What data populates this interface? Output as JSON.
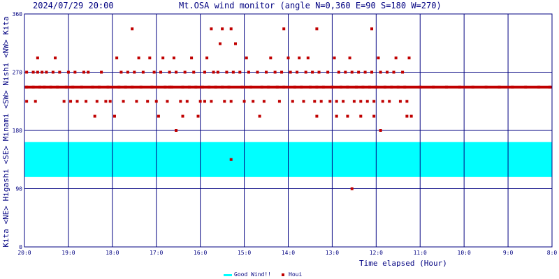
{
  "header": {
    "date": "2024/07/29 20:00",
    "title": "Mt.OSA wind monitor (angle N=0,360 E=90 S=180 W=270)"
  },
  "chart_data": {
    "type": "scatter",
    "title": "Mt.OSA wind monitor (angle N=0,360 E=90 S=180 W=270)",
    "ylabel": "Kita <NE> Higashi <SE> Minami <SW> Nishi <NW> Kita",
    "xlabel": "Time elapsed (Hour)",
    "xlim": [
      20,
      8
    ],
    "ylim": [
      0,
      360
    ],
    "x_tick_labels": [
      "20:0",
      "19:0",
      "18:0",
      "17:0",
      "16:0",
      "15:0",
      "14:0",
      "13:0",
      "12:0",
      "11:0",
      "10:0",
      "9:0",
      "8:0"
    ],
    "y_tick_labels": [
      "0",
      "90",
      "180",
      "270",
      "360"
    ],
    "y_ticks": [
      0,
      90,
      180,
      270,
      360
    ],
    "grid": true,
    "legend_position": "bottom-center",
    "colors": {
      "good_wind": "#00ffff",
      "houi": "#c00000",
      "axis": "#000080",
      "grid": "#000080"
    },
    "good_wind_band": {
      "label": "Good Wind!!",
      "range": [
        108,
        162
      ]
    },
    "series": [
      {
        "name": "Houi",
        "points": [
          [
            19.95,
            247
          ],
          [
            19.95,
            225
          ],
          [
            19.95,
            270
          ],
          [
            19.8,
            247
          ],
          [
            19.8,
            270
          ],
          [
            19.75,
            225
          ],
          [
            19.7,
            292
          ],
          [
            19.7,
            270
          ],
          [
            19.65,
            247
          ],
          [
            19.6,
            270
          ],
          [
            19.55,
            247
          ],
          [
            19.5,
            270
          ],
          [
            19.4,
            247
          ],
          [
            19.35,
            270
          ],
          [
            19.3,
            292
          ],
          [
            19.25,
            247
          ],
          [
            19.2,
            270
          ],
          [
            19.1,
            225
          ],
          [
            19.05,
            247
          ],
          [
            19.0,
            270
          ],
          [
            18.95,
            225
          ],
          [
            18.9,
            247
          ],
          [
            18.85,
            270
          ],
          [
            18.8,
            225
          ],
          [
            18.7,
            247
          ],
          [
            18.65,
            270
          ],
          [
            18.6,
            225
          ],
          [
            18.55,
            270
          ],
          [
            18.45,
            247
          ],
          [
            18.4,
            202
          ],
          [
            18.35,
            225
          ],
          [
            18.3,
            247
          ],
          [
            18.25,
            270
          ],
          [
            18.15,
            225
          ],
          [
            18.1,
            247
          ],
          [
            18.05,
            225
          ],
          [
            17.95,
            202
          ],
          [
            17.9,
            292
          ],
          [
            17.85,
            247
          ],
          [
            17.8,
            270
          ],
          [
            17.75,
            225
          ],
          [
            17.7,
            247
          ],
          [
            17.65,
            270
          ],
          [
            17.55,
            247
          ],
          [
            17.5,
            270
          ],
          [
            17.45,
            225
          ],
          [
            17.4,
            292
          ],
          [
            17.35,
            247
          ],
          [
            17.3,
            270
          ],
          [
            17.2,
            225
          ],
          [
            17.15,
            292
          ],
          [
            17.1,
            247
          ],
          [
            17.05,
            270
          ],
          [
            17.0,
            225
          ],
          [
            16.95,
            202
          ],
          [
            16.9,
            270
          ],
          [
            16.85,
            292
          ],
          [
            16.8,
            247
          ],
          [
            16.75,
            225
          ],
          [
            16.7,
            270
          ],
          [
            16.65,
            247
          ],
          [
            16.6,
            292
          ],
          [
            16.55,
            270
          ],
          [
            16.45,
            225
          ],
          [
            16.4,
            247
          ],
          [
            16.35,
            270
          ],
          [
            16.3,
            225
          ],
          [
            16.25,
            247
          ],
          [
            16.2,
            292
          ],
          [
            16.15,
            270
          ],
          [
            16.1,
            247
          ],
          [
            16.05,
            202
          ],
          [
            16.0,
            225
          ],
          [
            15.95,
            247
          ],
          [
            15.9,
            270
          ],
          [
            15.85,
            292
          ],
          [
            15.8,
            247
          ],
          [
            15.75,
            225
          ],
          [
            15.7,
            270
          ],
          [
            15.65,
            247
          ],
          [
            15.6,
            270
          ],
          [
            15.55,
            314
          ],
          [
            15.5,
            247
          ],
          [
            15.45,
            225
          ],
          [
            15.4,
            270
          ],
          [
            15.35,
            247
          ],
          [
            15.3,
            225
          ],
          [
            15.25,
            270
          ],
          [
            15.2,
            314
          ],
          [
            15.1,
            270
          ],
          [
            15.05,
            247
          ],
          [
            15.0,
            225
          ],
          [
            14.95,
            292
          ],
          [
            14.9,
            270
          ],
          [
            14.85,
            247
          ],
          [
            14.8,
            225
          ],
          [
            14.7,
            270
          ],
          [
            14.6,
            247
          ],
          [
            14.55,
            225
          ],
          [
            14.5,
            270
          ],
          [
            14.45,
            247
          ],
          [
            14.4,
            292
          ],
          [
            14.3,
            270
          ],
          [
            14.25,
            247
          ],
          [
            14.2,
            225
          ],
          [
            14.15,
            270
          ],
          [
            14.1,
            247
          ],
          [
            14.0,
            292
          ],
          [
            13.95,
            270
          ],
          [
            13.9,
            225
          ],
          [
            13.85,
            247
          ],
          [
            13.8,
            270
          ],
          [
            13.75,
            292
          ],
          [
            13.7,
            247
          ],
          [
            13.65,
            225
          ],
          [
            13.6,
            270
          ],
          [
            13.55,
            292
          ],
          [
            13.5,
            247
          ],
          [
            13.45,
            270
          ],
          [
            13.4,
            225
          ],
          [
            13.35,
            247
          ],
          [
            13.3,
            270
          ],
          [
            13.25,
            225
          ],
          [
            13.2,
            247
          ],
          [
            13.1,
            270
          ],
          [
            13.05,
            225
          ],
          [
            13.0,
            247
          ],
          [
            12.95,
            292
          ],
          [
            12.9,
            225
          ],
          [
            12.85,
            270
          ],
          [
            12.8,
            247
          ],
          [
            12.75,
            225
          ],
          [
            12.7,
            270
          ],
          [
            12.65,
            247
          ],
          [
            12.6,
            292
          ],
          [
            12.55,
            270
          ],
          [
            12.5,
            225
          ],
          [
            12.45,
            247
          ],
          [
            12.4,
            270
          ],
          [
            12.35,
            225
          ],
          [
            12.3,
            247
          ],
          [
            12.25,
            270
          ],
          [
            12.2,
            225
          ],
          [
            12.15,
            247
          ],
          [
            12.1,
            270
          ],
          [
            12.05,
            225
          ],
          [
            12.0,
            247
          ],
          [
            11.95,
            292
          ],
          [
            11.9,
            270
          ],
          [
            11.85,
            225
          ],
          [
            11.8,
            247
          ],
          [
            11.75,
            270
          ],
          [
            11.7,
            225
          ],
          [
            11.65,
            247
          ],
          [
            11.6,
            270
          ],
          [
            11.55,
            292
          ],
          [
            11.5,
            247
          ],
          [
            11.45,
            225
          ],
          [
            11.4,
            270
          ],
          [
            11.35,
            247
          ],
          [
            11.3,
            225
          ],
          [
            11.25,
            292
          ],
          [
            16.55,
            180
          ],
          [
            16.4,
            202
          ],
          [
            17.55,
            337
          ],
          [
            15.75,
            337
          ],
          [
            15.5,
            337
          ],
          [
            15.3,
            337
          ],
          [
            14.1,
            337
          ],
          [
            13.35,
            337
          ],
          [
            12.1,
            337
          ],
          [
            11.9,
            180
          ],
          [
            12.05,
            202
          ],
          [
            12.35,
            202
          ],
          [
            12.65,
            202
          ],
          [
            13.35,
            202
          ],
          [
            14.65,
            202
          ],
          [
            12.9,
            202
          ],
          [
            11.3,
            202
          ],
          [
            11.2,
            202
          ],
          [
            15.9,
            225
          ],
          [
            16.7,
            247
          ],
          [
            15.3,
            135
          ],
          [
            12.55,
            90
          ],
          [
            11.0,
            247
          ],
          [
            10.7,
            247
          ],
          [
            10.4,
            247
          ],
          [
            10.1,
            247
          ],
          [
            9.8,
            247
          ],
          [
            9.5,
            247
          ],
          [
            9.2,
            247
          ],
          [
            8.9,
            247
          ],
          [
            8.6,
            247
          ],
          [
            8.3,
            247
          ],
          [
            8.05,
            247
          ]
        ]
      }
    ],
    "continuous_segments": [
      {
        "series": "Houi",
        "y": 247,
        "x_from": 20.0,
        "x_to": 8.0
      }
    ]
  },
  "legend": {
    "good_label": "Good Wind!!",
    "houi_label": "Houi"
  }
}
